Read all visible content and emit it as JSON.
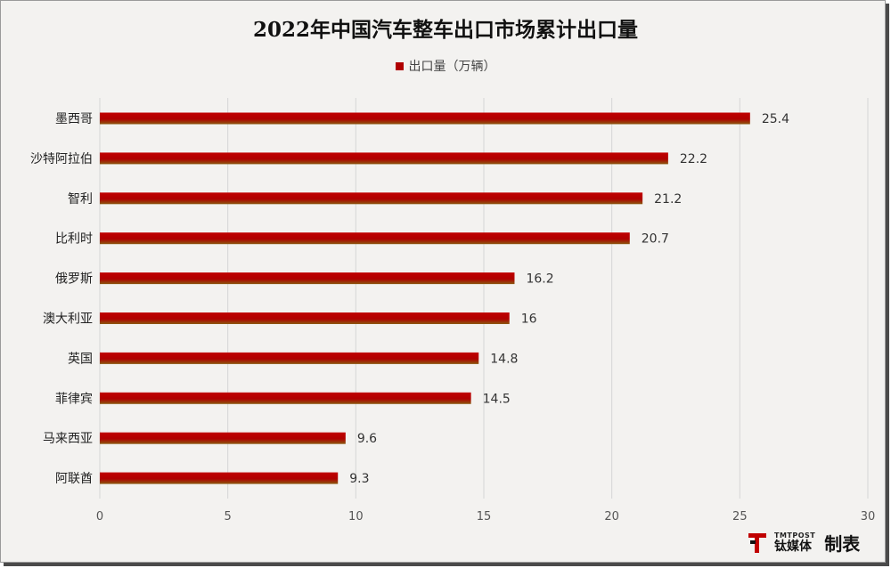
{
  "chart_data": {
    "type": "bar",
    "orientation": "horizontal",
    "title": "2022年中国汽车整车出口市场累计出口量",
    "series": [
      {
        "name": "出口量（万辆）",
        "color": "#b00000",
        "values": [
          25.4,
          22.2,
          21.2,
          20.7,
          16.2,
          16,
          14.8,
          14.5,
          9.6,
          9.3
        ]
      }
    ],
    "categories": [
      "墨西哥",
      "沙特阿拉伯",
      "智利",
      "比利时",
      "俄罗斯",
      "澳大利亚",
      "英国",
      "菲律宾",
      "马来西亚",
      "阿联酋"
    ],
    "value_labels": [
      "25.4",
      "22.2",
      "21.2",
      "20.7",
      "16.2",
      "16",
      "14.8",
      "14.5",
      "9.6",
      "9.3"
    ],
    "xlim": [
      0,
      30
    ],
    "xticks": [
      "0",
      "5",
      "10",
      "15",
      "20",
      "25",
      "30"
    ],
    "grid": true,
    "legend_position": "top"
  },
  "brand": {
    "logo_top_text": "TMTPOST",
    "logo_bottom_text": "钛媒体",
    "made_by": "制表"
  }
}
